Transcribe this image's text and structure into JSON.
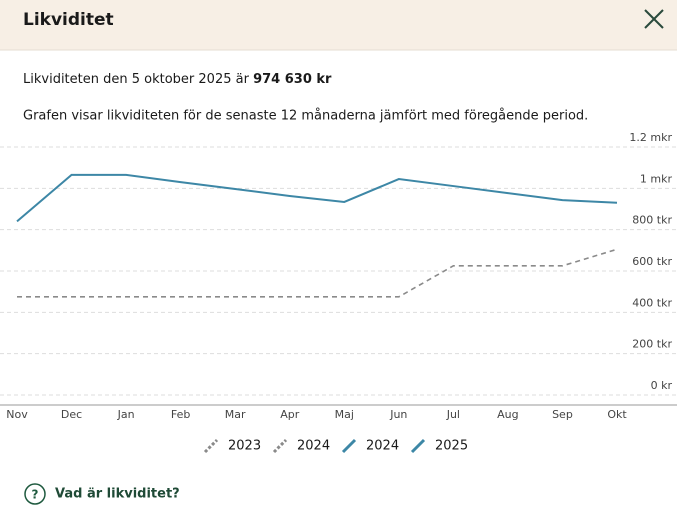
{
  "header": {
    "title": "Likviditet"
  },
  "summary": {
    "text": "Likviditeten den 5 oktober 2025 är",
    "amount": "974 630 kr"
  },
  "description": "Grafen visar likviditeten för de senaste 12 månaderna jämfört med föregående period.",
  "chart_data": {
    "type": "line",
    "categories": [
      "Nov",
      "Dec",
      "Jan",
      "Feb",
      "Mar",
      "Apr",
      "Maj",
      "Jun",
      "Jul",
      "Aug",
      "Sep",
      "Okt"
    ],
    "series": [
      {
        "legend": [
          "2023",
          "2024"
        ],
        "color": "#8a8a8a",
        "dashed": true,
        "values": [
          475000,
          475000,
          475000,
          475000,
          475000,
          475000,
          475000,
          475000,
          625000,
          625000,
          625000,
          705000
        ]
      },
      {
        "legend": [
          "2024",
          "2025"
        ],
        "color": "#3d87a6",
        "dashed": false,
        "values": [
          840000,
          1065000,
          1065000,
          1030000,
          997000,
          963000,
          934000,
          1045000,
          1011000,
          977000,
          943000,
          930000
        ]
      }
    ],
    "ylim": [
      0,
      1200000
    ],
    "yticks": [
      {
        "value": 0,
        "label": "0 kr"
      },
      {
        "value": 200000,
        "label": "200 tkr"
      },
      {
        "value": 400000,
        "label": "400 tkr"
      },
      {
        "value": 600000,
        "label": "600 tkr"
      },
      {
        "value": 800000,
        "label": "800 tkr"
      },
      {
        "value": 1000000,
        "label": "1 mkr"
      },
      {
        "value": 1200000,
        "label": "1.2 mkr"
      }
    ],
    "grid": true
  },
  "footer": {
    "link": "Vad är likviditet?"
  }
}
